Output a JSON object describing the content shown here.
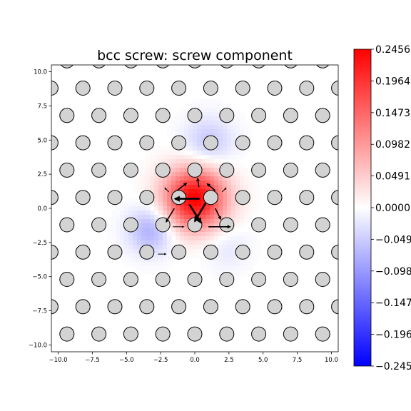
{
  "chart_data": {
    "type": "heatmap",
    "title": "bcc screw: screw component",
    "xlim": [
      -10.5,
      10.5
    ],
    "ylim": [
      -10.5,
      10.5
    ],
    "x_ticks": [
      -10.0,
      -7.5,
      -5.0,
      -2.5,
      0.0,
      2.5,
      5.0,
      7.5,
      10.0
    ],
    "y_ticks": [
      -10.0,
      -7.5,
      -5.0,
      -2.5,
      0.0,
      2.5,
      5.0,
      7.5,
      10.0
    ],
    "x_tick_labels": [
      "−10.0",
      "−7.5",
      "−5.0",
      "−2.5",
      "0.0",
      "2.5",
      "5.0",
      "7.5",
      "10.0"
    ],
    "y_tick_labels": [
      "−10.0",
      "−7.5",
      "−5.0",
      "−2.5",
      "0.0",
      "2.5",
      "5.0",
      "7.5",
      "10.0"
    ],
    "colorbar": {
      "cmap": "bwr",
      "vmin": -0.2456,
      "vmax": 0.2456,
      "ticks": [
        0.2456,
        0.1964,
        0.1473,
        0.0982,
        0.0491,
        0.0,
        -0.0491,
        -0.0982,
        -0.1473,
        -0.1964,
        -0.2456
      ],
      "tick_labels": [
        "0.2456",
        "0.1964",
        "0.1473",
        "0.0982",
        "0.0491",
        "0.0000",
        "−0.0491",
        "−0.0982",
        "−0.1473",
        "−0.1964",
        "−0.2456"
      ]
    },
    "lattice": {
      "row_spacing": 2.0,
      "column_spacing": 2.34,
      "row_offset": 1.17,
      "y_start": -9.2,
      "x_start_even": -9.36,
      "atom_radius": 0.52,
      "atom_color": "#d3d3d3",
      "atom_edge": "#000000"
    },
    "displacement_field": [
      {
        "x": 0.0,
        "y": 0.7,
        "amplitude": 0.2456,
        "spread": 1.6
      },
      {
        "x": -3.2,
        "y": -1.6,
        "amplitude": -0.08,
        "spread": 1.2
      },
      {
        "x": 1.0,
        "y": 4.8,
        "amplitude": -0.055,
        "spread": 1.3
      },
      {
        "x": 2.3,
        "y": -2.8,
        "amplitude": -0.025,
        "spread": 1.2
      }
    ],
    "arrows": [
      {
        "x": 0.35,
        "y": 0.7,
        "dx": -1.8,
        "dy": 0.0,
        "width": "thick"
      },
      {
        "x": -0.4,
        "y": 0.3,
        "dx": 0.85,
        "dy": -1.35,
        "width": "thick"
      },
      {
        "x": 0.8,
        "y": 0.4,
        "dx": -0.8,
        "dy": -1.35,
        "width": "thick"
      },
      {
        "x": 1.0,
        "y": -1.35,
        "dx": 1.6,
        "dy": 0.0,
        "width": "medium"
      },
      {
        "x": -1.3,
        "y": 1.3,
        "dx": 0.7,
        "dy": 0.55,
        "width": "medium"
      },
      {
        "x": 0.3,
        "y": 1.55,
        "dx": -0.1,
        "dy": 0.65,
        "width": "medium"
      },
      {
        "x": 1.5,
        "y": 1.3,
        "dx": -0.6,
        "dy": 0.5,
        "width": "medium"
      },
      {
        "x": -1.5,
        "y": 0.0,
        "dx": -0.6,
        "dy": -1.0,
        "width": "medium"
      },
      {
        "x": 1.5,
        "y": 0.0,
        "dx": 0.4,
        "dy": -0.8,
        "width": "medium"
      },
      {
        "x": -1.6,
        "y": -1.35,
        "dx": 0.8,
        "dy": 0.0,
        "width": "thin"
      },
      {
        "x": -2.7,
        "y": -3.35,
        "dx": 0.6,
        "dy": 0.0,
        "width": "thin"
      },
      {
        "x": -1.9,
        "y": 1.2,
        "dx": -0.3,
        "dy": 0.3,
        "width": "thin"
      },
      {
        "x": 2.0,
        "y": 1.2,
        "dx": 0.3,
        "dy": 0.3,
        "width": "thin"
      }
    ]
  }
}
